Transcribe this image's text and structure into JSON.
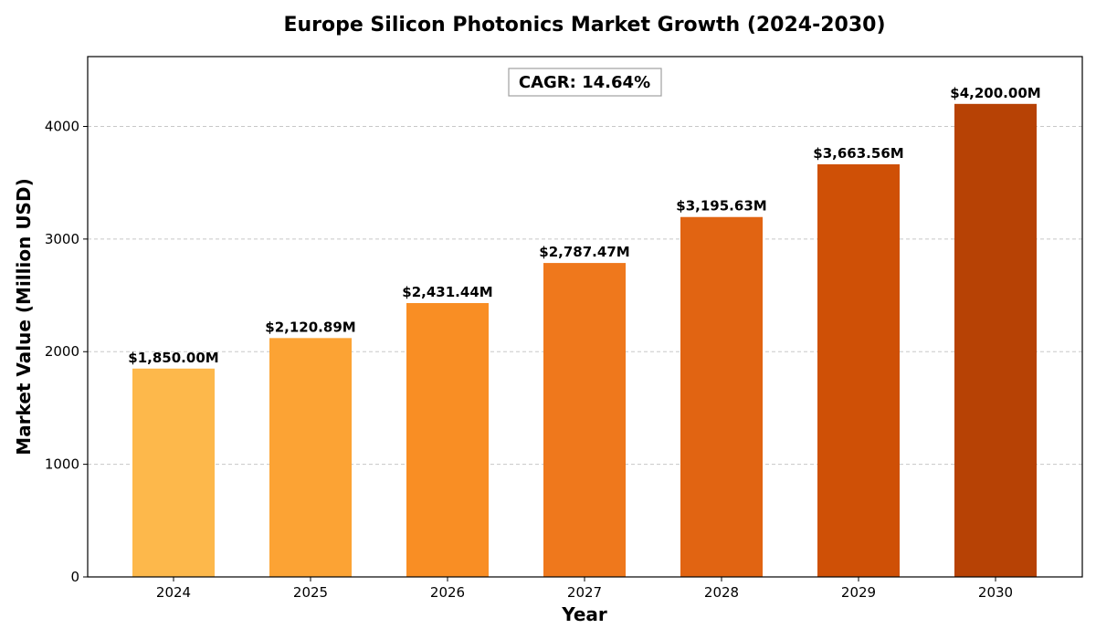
{
  "chart_data": {
    "type": "bar",
    "title": "Europe Silicon Photonics Market Growth (2024-2030)",
    "xlabel": "Year",
    "ylabel": "Market Value (Million USD)",
    "categories": [
      "2024",
      "2025",
      "2026",
      "2027",
      "2028",
      "2029",
      "2030"
    ],
    "values": [
      1850.0,
      2120.89,
      2431.44,
      2787.47,
      3195.63,
      3663.56,
      4200.0
    ],
    "data_labels": [
      "$1,850.00M",
      "$2,120.89M",
      "$2,431.44M",
      "$2,787.47M",
      "$3,195.63M",
      "$3,663.56M",
      "$4,200.00M"
    ],
    "colors": [
      "#fdb84b",
      "#fca334",
      "#f98e24",
      "#ef781c",
      "#e16412",
      "#cf5006",
      "#b74205"
    ],
    "ylim": [
      0,
      4620
    ],
    "yticks": [
      0,
      1000,
      2000,
      3000,
      4000
    ],
    "ytick_labels": [
      "0",
      "1000",
      "2000",
      "3000",
      "4000"
    ],
    "grid": {
      "axis": "y",
      "style": "dashed",
      "color": "#c8c8c8"
    },
    "annotation": {
      "text": "CAGR: 14.64%",
      "position": "top-center",
      "boxed": true
    },
    "legend": null
  }
}
